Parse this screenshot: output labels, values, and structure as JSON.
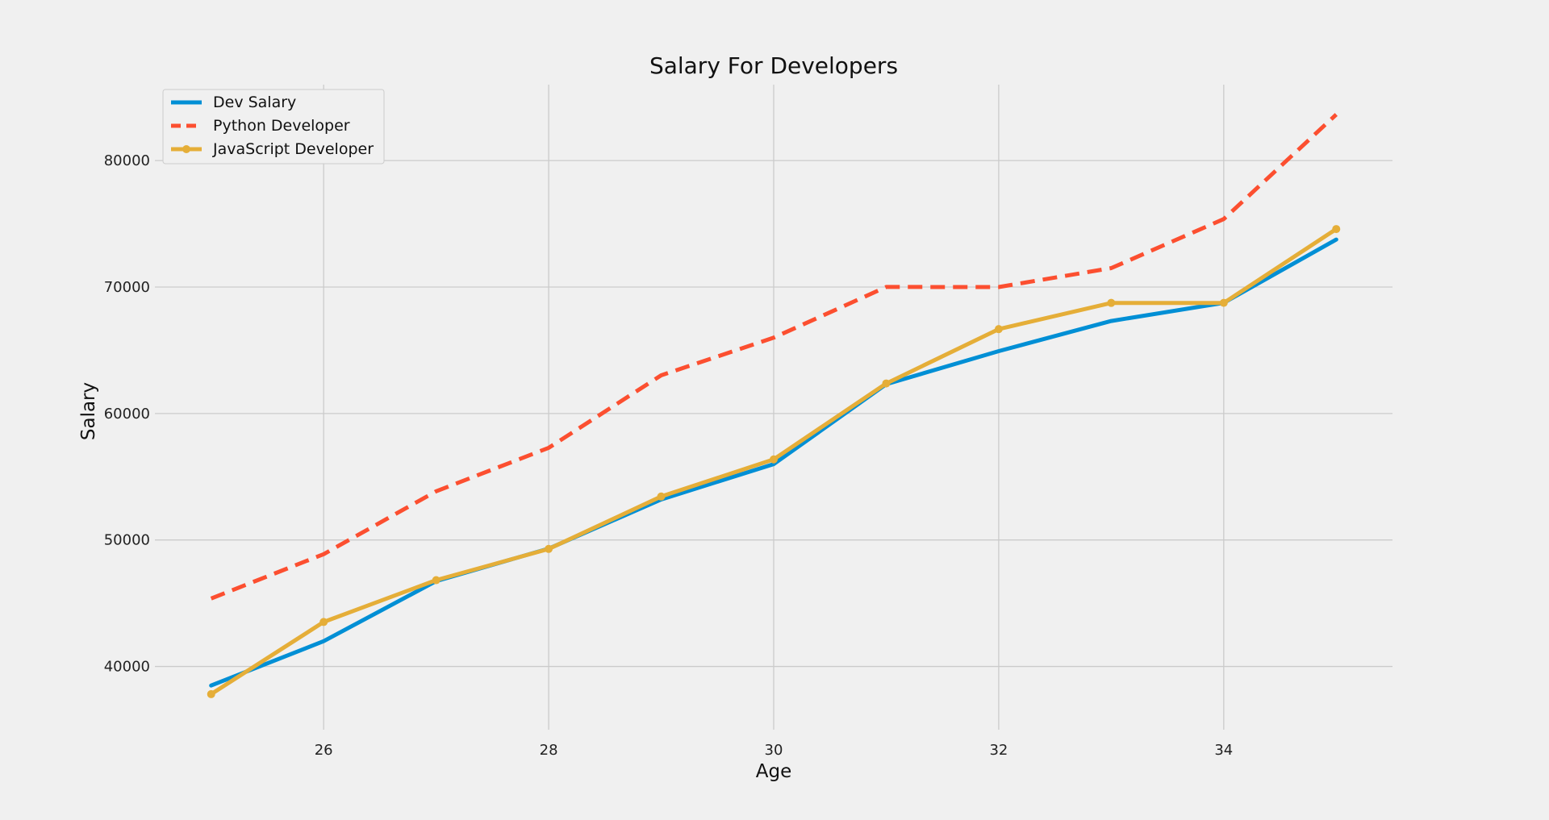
{
  "chart_data": {
    "type": "line",
    "title": "Salary For Developers",
    "xlabel": "Age",
    "ylabel": "Salary",
    "x": [
      25,
      26,
      27,
      28,
      29,
      30,
      31,
      32,
      33,
      34,
      35
    ],
    "xlim": [
      24.5,
      35.5
    ],
    "ylim": [
      35000,
      86000
    ],
    "xticks": [
      26,
      28,
      30,
      32,
      34
    ],
    "yticks": [
      40000,
      50000,
      60000,
      70000,
      80000
    ],
    "grid": true,
    "legend_position": "top-left",
    "series": [
      {
        "name": "Dev Salary",
        "color": "#008fd5",
        "style": "solid",
        "marker": "none",
        "values": [
          38496,
          42000,
          46752,
          49320,
          53200,
          56000,
          62316,
          64928,
          67317,
          68748,
          73752
        ]
      },
      {
        "name": "Python Developer",
        "color": "#fc4f30",
        "style": "dashed",
        "marker": "none",
        "values": [
          45372,
          48876,
          53850,
          57287,
          63016,
          65998,
          70003,
          70000,
          71496,
          75370,
          83640
        ]
      },
      {
        "name": "JavaScript Developer",
        "color": "#e5ae38",
        "style": "solid",
        "marker": "circle",
        "values": [
          37810,
          43515,
          46823,
          49293,
          53437,
          56373,
          62375,
          66674,
          68745,
          68746,
          74583
        ]
      }
    ]
  }
}
